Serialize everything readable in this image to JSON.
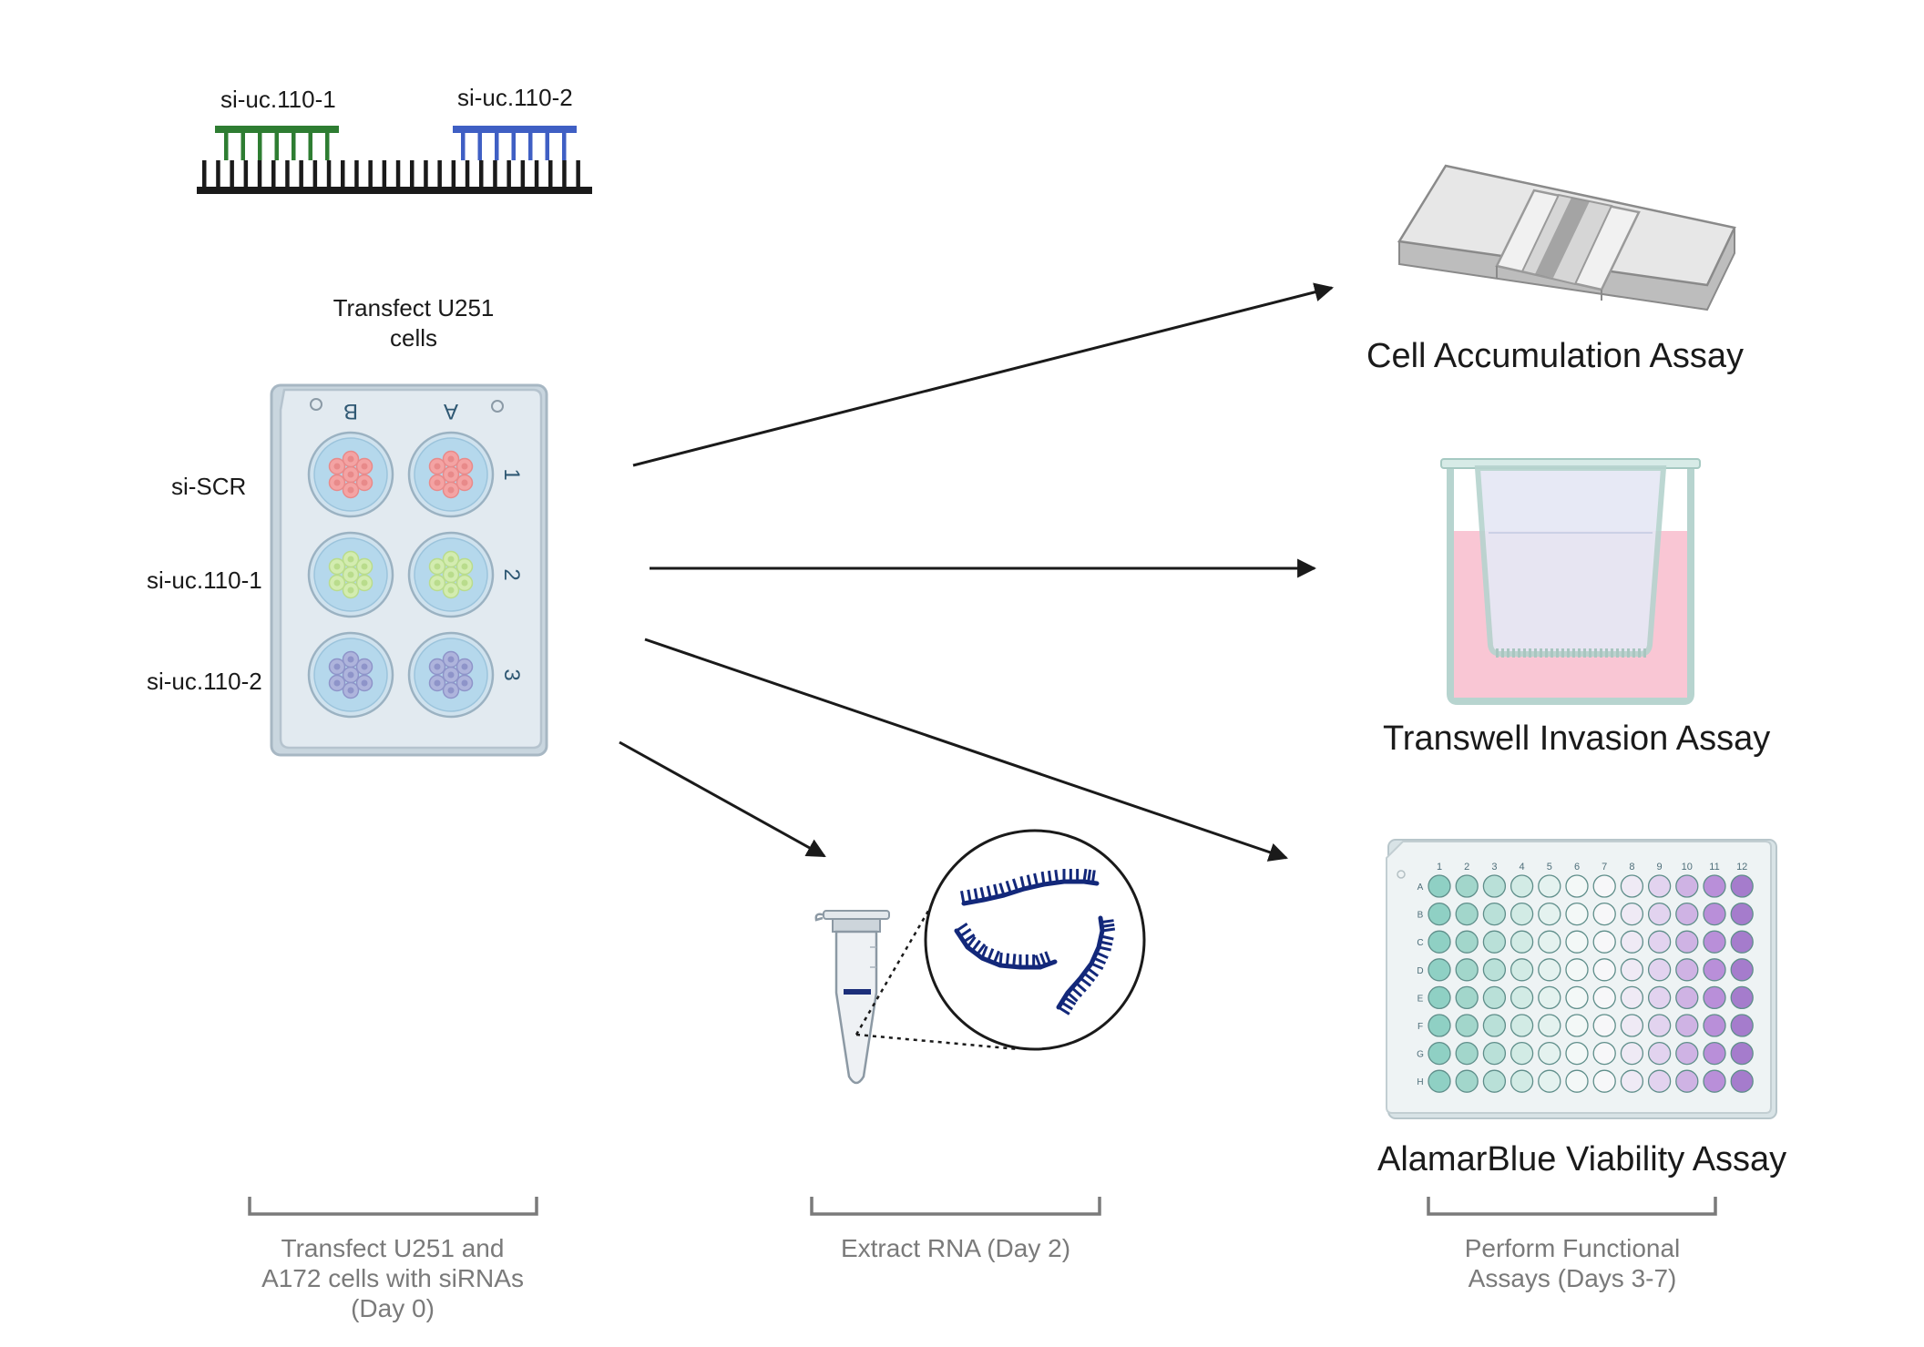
{
  "sirna": {
    "label_1": "si-uc.110-1",
    "label_2": "si-uc.110-2",
    "color_1": "#2e7d32",
    "color_2": "#3f5fc4"
  },
  "transfect": {
    "title_line1": "Transfect U251",
    "title_line2": "cells"
  },
  "plate6": {
    "columns": [
      "B",
      "A"
    ],
    "rows": [
      "1",
      "2",
      "3"
    ],
    "row_labels": [
      "si-SCR",
      "si-uc.110-1",
      "si-uc.110-2"
    ],
    "cell_colors": [
      "#f4a3a3",
      "#d3ecb0",
      "#aeb4dc"
    ]
  },
  "assays": {
    "accumulation": "Cell Accumulation Assay",
    "transwell": "Transwell Invasion Assay",
    "alamar": "AlamarBlue Viability Assay"
  },
  "plate96": {
    "columns": [
      "1",
      "2",
      "3",
      "4",
      "5",
      "6",
      "7",
      "8",
      "9",
      "10",
      "11",
      "12"
    ],
    "rows": [
      "A",
      "B",
      "C",
      "D",
      "E",
      "F",
      "G",
      "H"
    ],
    "well_colors": [
      "#8fd0c4",
      "#a2d6cb",
      "#b9e0d8",
      "#d2ebe5",
      "#e4f2ef",
      "#f3f8f7",
      "#f7f7f9",
      "#efeaf5",
      "#e2d3ef",
      "#cfb3e4",
      "#b98fd9",
      "#a57ccc"
    ]
  },
  "stages": {
    "stage1": [
      "Transfect U251 and",
      "A172 cells with siRNAs",
      "(Day 0)"
    ],
    "stage2": [
      "Extract RNA (Day 2)"
    ],
    "stage3": [
      "Perform Functional",
      "Assays (Days 3-7)"
    ]
  },
  "icons": [
    "dna-duplex-icon",
    "six-well-plate-icon",
    "microscope-slide-icon",
    "transwell-insert-icon",
    "ninety-six-well-plate-icon",
    "microtube-icon",
    "rna-strands-icon"
  ]
}
